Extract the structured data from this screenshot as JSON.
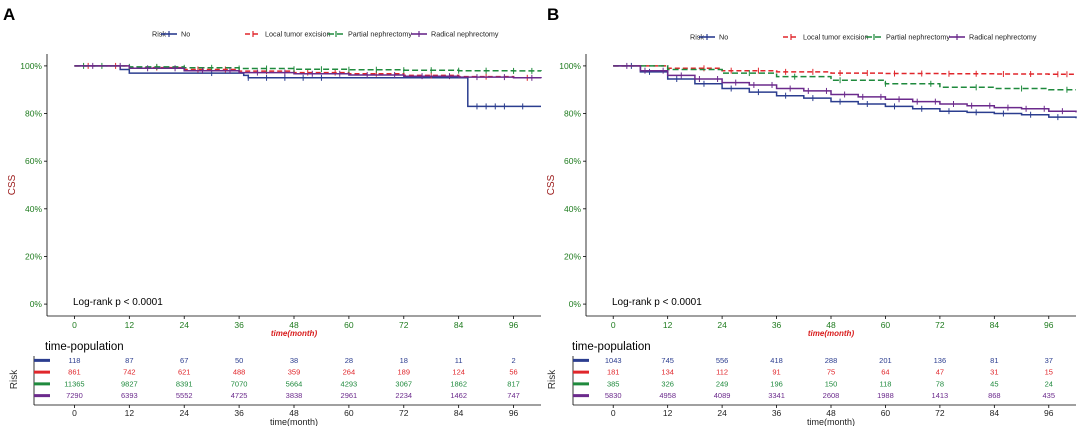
{
  "chart_data": [
    {
      "type": "line",
      "panel": "A",
      "ylabel": "CSS",
      "xlabel": "time(month)",
      "xlim": [
        -6,
        102
      ],
      "ylim": [
        -0.05,
        1.05
      ],
      "x_ticks": [
        0,
        12,
        24,
        36,
        48,
        60,
        72,
        84,
        96
      ],
      "y_ticks": [
        "0%",
        "20%",
        "40%",
        "60%",
        "80%",
        "100%"
      ],
      "y_tick_values": [
        0,
        0.2,
        0.4,
        0.6,
        0.8,
        1.0
      ],
      "legend_title": "Risk",
      "annotation": "Log-rank    p < 0.0001",
      "series": [
        {
          "name": "No",
          "color": "#2b3d8f",
          "dash": "",
          "points": [
            [
              0,
              1.0
            ],
            [
              5,
              1.0
            ],
            [
              10,
              0.985
            ],
            [
              12,
              0.97
            ],
            [
              24,
              0.97
            ],
            [
              37,
              0.96
            ],
            [
              38,
              0.95
            ],
            [
              48,
              0.95
            ],
            [
              60,
              0.95
            ],
            [
              72,
              0.95
            ],
            [
              85,
              0.95
            ],
            [
              86,
              0.83
            ],
            [
              102,
              0.83
            ]
          ],
          "censor": [
            30,
            38,
            42,
            46,
            50,
            54,
            88,
            90,
            92,
            94,
            98
          ]
        },
        {
          "name": "Local tumor excision",
          "color": "#e0262b",
          "dash": "5,3",
          "points": [
            [
              0,
              1.0
            ],
            [
              12,
              0.993
            ],
            [
              24,
              0.985
            ],
            [
              36,
              0.978
            ],
            [
              48,
              0.972
            ],
            [
              60,
              0.967
            ],
            [
              72,
              0.96
            ],
            [
              84,
              0.955
            ],
            [
              96,
              0.95
            ],
            [
              102,
              0.95
            ]
          ],
          "censor": [
            3,
            9,
            18,
            27,
            33,
            42,
            51,
            57,
            66,
            78,
            90,
            99
          ]
        },
        {
          "name": "Partial nephrectomy",
          "color": "#1f8a3d",
          "dash": "6,3",
          "points": [
            [
              0,
              1.0
            ],
            [
              12,
              0.996
            ],
            [
              24,
              0.992
            ],
            [
              36,
              0.989
            ],
            [
              48,
              0.986
            ],
            [
              60,
              0.984
            ],
            [
              72,
              0.982
            ],
            [
              84,
              0.98
            ],
            [
              96,
              0.979
            ],
            [
              102,
              0.978
            ]
          ],
          "censor": [
            2,
            6,
            12,
            18,
            24,
            30,
            36,
            42,
            48,
            54,
            60,
            66,
            72,
            78,
            84,
            90,
            96,
            100
          ]
        },
        {
          "name": "Radical nephrectomy",
          "color": "#6b2a8c",
          "dash": "",
          "points": [
            [
              0,
              1.0
            ],
            [
              12,
              0.99
            ],
            [
              24,
              0.98
            ],
            [
              36,
              0.972
            ],
            [
              48,
              0.967
            ],
            [
              60,
              0.962
            ],
            [
              72,
              0.957
            ],
            [
              84,
              0.953
            ],
            [
              96,
              0.95
            ],
            [
              102,
              0.948
            ]
          ],
          "censor": [
            4,
            10,
            16,
            22,
            28,
            34,
            40,
            46,
            52,
            58,
            64,
            70,
            76,
            82,
            88,
            94,
            100
          ]
        }
      ],
      "risk_table": {
        "title": "time-population",
        "ylabel": "Risk",
        "xlabel": "time(month)",
        "times": [
          0,
          12,
          24,
          36,
          48,
          60,
          72,
          84,
          96
        ],
        "rows": [
          {
            "color": "#2b3d8f",
            "values": [
              "118",
              "87",
              "67",
              "50",
              "38",
              "28",
              "18",
              "11",
              "2"
            ]
          },
          {
            "color": "#e0262b",
            "values": [
              "861",
              "742",
              "621",
              "488",
              "359",
              "264",
              "189",
              "124",
              "56"
            ]
          },
          {
            "color": "#1f8a3d",
            "values": [
              "11365",
              "9827",
              "8391",
              "7070",
              "5664",
              "4293",
              "3067",
              "1862",
              "817"
            ]
          },
          {
            "color": "#6b2a8c",
            "values": [
              "7290",
              "6393",
              "5552",
              "4725",
              "3838",
              "2961",
              "2234",
              "1462",
              "747"
            ]
          }
        ]
      }
    },
    {
      "type": "line",
      "panel": "B",
      "ylabel": "CSS",
      "xlabel": "time(month)",
      "xlim": [
        -6,
        102
      ],
      "ylim": [
        -0.05,
        1.05
      ],
      "x_ticks": [
        0,
        12,
        24,
        36,
        48,
        60,
        72,
        84,
        96
      ],
      "y_ticks": [
        "0%",
        "20%",
        "40%",
        "60%",
        "80%",
        "100%"
      ],
      "y_tick_values": [
        0,
        0.2,
        0.4,
        0.6,
        0.8,
        1.0
      ],
      "legend_title": "Risk",
      "annotation": "Log-rank    p < 0.0001",
      "series": [
        {
          "name": "No",
          "color": "#2b3d8f",
          "dash": "",
          "points": [
            [
              0,
              1.0
            ],
            [
              6,
              0.975
            ],
            [
              12,
              0.945
            ],
            [
              18,
              0.925
            ],
            [
              24,
              0.905
            ],
            [
              30,
              0.89
            ],
            [
              36,
              0.875
            ],
            [
              42,
              0.865
            ],
            [
              48,
              0.85
            ],
            [
              54,
              0.84
            ],
            [
              60,
              0.83
            ],
            [
              66,
              0.82
            ],
            [
              72,
              0.81
            ],
            [
              78,
              0.805
            ],
            [
              84,
              0.8
            ],
            [
              90,
              0.795
            ],
            [
              96,
              0.785
            ],
            [
              102,
              0.78
            ]
          ],
          "censor": [
            4,
            8,
            14,
            20,
            26,
            32,
            38,
            44,
            50,
            56,
            62,
            68,
            74,
            80,
            86,
            92,
            98
          ]
        },
        {
          "name": "Local tumor excision",
          "color": "#e0262b",
          "dash": "5,3",
          "points": [
            [
              0,
              1.0
            ],
            [
              12,
              0.99
            ],
            [
              24,
              0.98
            ],
            [
              36,
              0.975
            ],
            [
              48,
              0.97
            ],
            [
              60,
              0.968
            ],
            [
              72,
              0.967
            ],
            [
              84,
              0.966
            ],
            [
              96,
              0.965
            ],
            [
              102,
              0.965
            ]
          ],
          "censor": [
            20,
            26,
            32,
            38,
            44,
            50,
            56,
            62,
            68,
            74,
            80,
            86,
            92,
            98,
            100
          ]
        },
        {
          "name": "Partial nephrectomy",
          "color": "#1f8a3d",
          "dash": "6,3",
          "points": [
            [
              0,
              1.0
            ],
            [
              12,
              0.985
            ],
            [
              24,
              0.97
            ],
            [
              36,
              0.955
            ],
            [
              48,
              0.94
            ],
            [
              60,
              0.925
            ],
            [
              72,
              0.91
            ],
            [
              84,
              0.905
            ],
            [
              96,
              0.9
            ],
            [
              102,
              0.9
            ]
          ],
          "censor": [
            30,
            40,
            50,
            60,
            70,
            80,
            90,
            100
          ]
        },
        {
          "name": "Radical nephrectomy",
          "color": "#6b2a8c",
          "dash": "",
          "points": [
            [
              0,
              1.0
            ],
            [
              6,
              0.98
            ],
            [
              12,
              0.96
            ],
            [
              18,
              0.945
            ],
            [
              24,
              0.93
            ],
            [
              30,
              0.92
            ],
            [
              36,
              0.905
            ],
            [
              42,
              0.895
            ],
            [
              48,
              0.88
            ],
            [
              54,
              0.87
            ],
            [
              60,
              0.86
            ],
            [
              66,
              0.85
            ],
            [
              72,
              0.84
            ],
            [
              78,
              0.833
            ],
            [
              84,
              0.825
            ],
            [
              90,
              0.82
            ],
            [
              96,
              0.81
            ],
            [
              102,
              0.805
            ]
          ],
          "censor": [
            3,
            7,
            11,
            15,
            19,
            23,
            27,
            31,
            35,
            39,
            43,
            47,
            51,
            55,
            59,
            63,
            67,
            71,
            75,
            79,
            83,
            87,
            91,
            95,
            99
          ]
        }
      ],
      "risk_table": {
        "title": "time-population",
        "ylabel": "Risk",
        "xlabel": "time(month)",
        "times": [
          0,
          12,
          24,
          36,
          48,
          60,
          72,
          84,
          96
        ],
        "rows": [
          {
            "color": "#2b3d8f",
            "values": [
              "1043",
              "745",
              "556",
              "418",
              "288",
              "201",
              "136",
              "81",
              "37"
            ]
          },
          {
            "color": "#e0262b",
            "values": [
              "181",
              "134",
              "112",
              "91",
              "75",
              "64",
              "47",
              "31",
              "15"
            ]
          },
          {
            "color": "#1f8a3d",
            "values": [
              "385",
              "326",
              "249",
              "196",
              "150",
              "118",
              "78",
              "45",
              "24"
            ]
          },
          {
            "color": "#6b2a8c",
            "values": [
              "5830",
              "4958",
              "4089",
              "3341",
              "2608",
              "1988",
              "1413",
              "868",
              "435"
            ]
          }
        ]
      }
    }
  ]
}
